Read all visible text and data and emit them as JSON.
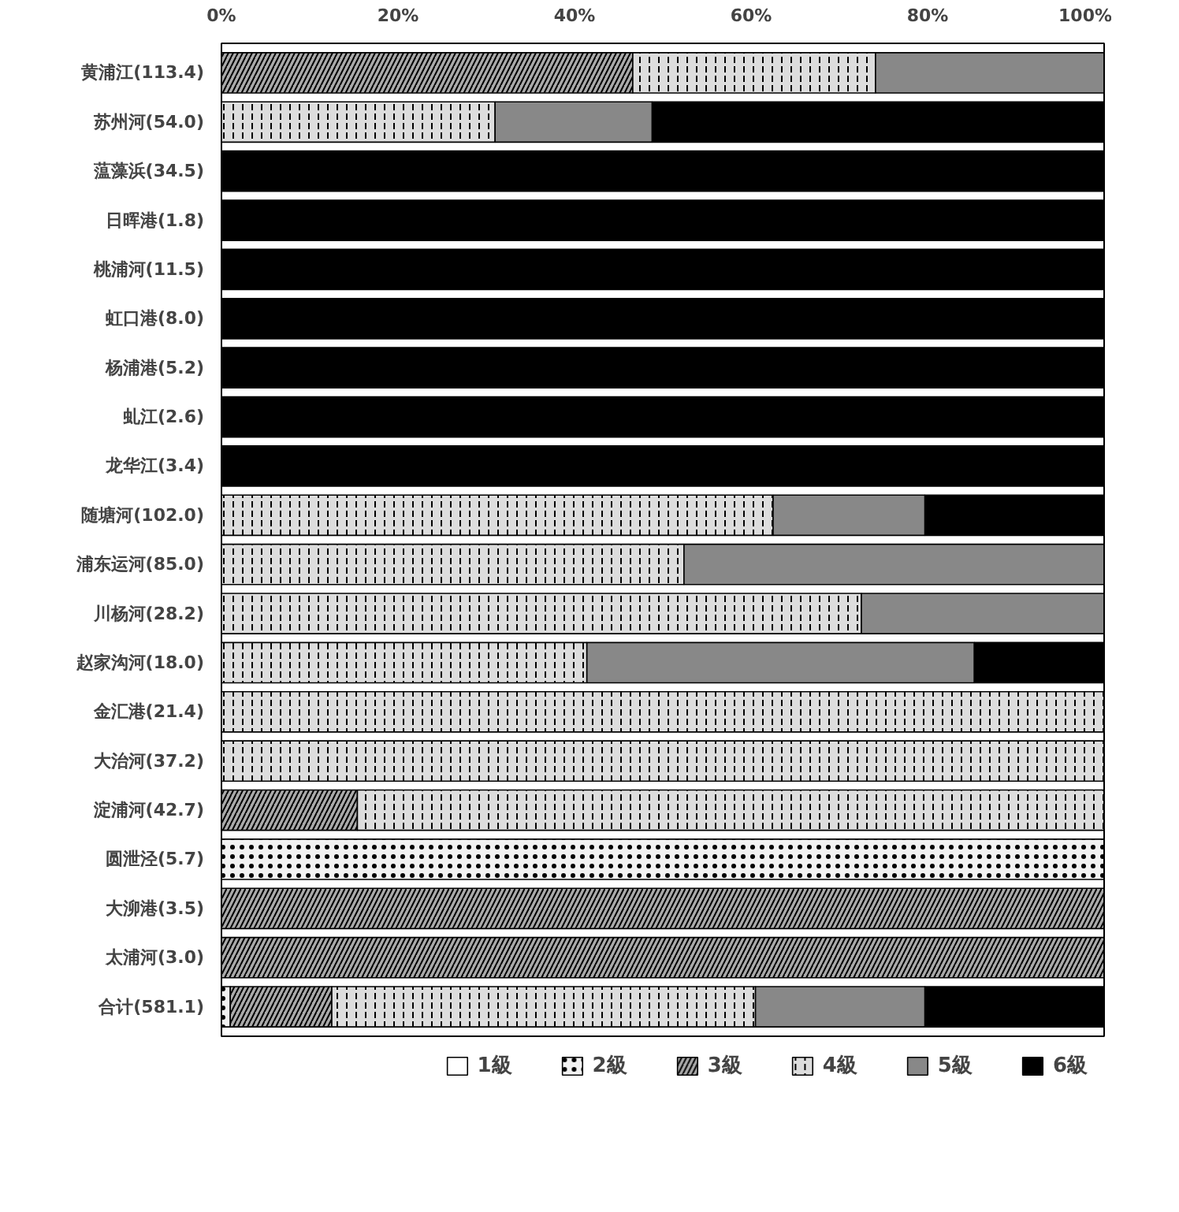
{
  "chart_data": {
    "type": "bar",
    "orientation": "horizontal",
    "stacked": true,
    "categories": [
      "黄浦江(113.4)",
      "苏州河(54.0)",
      "蕰藻浜(34.5)",
      "日晖港(1.8)",
      "桃浦河(11.5)",
      "虹口港(8.0)",
      "杨浦港(5.2)",
      "虬江(2.6)",
      "龙华江(3.4)",
      "随塘河(102.0)",
      "浦东运河(85.0)",
      "川杨河(28.2)",
      "赵家沟河(18.0)",
      "金汇港(21.4)",
      "大治河(37.2)",
      "淀浦河(42.7)",
      "圆泄泾(5.7)",
      "大泖港(3.5)",
      "太浦河(3.0)",
      "合计(581.1)"
    ],
    "series": [
      {
        "name": "1級",
        "color": "#ffffff",
        "values": [
          0,
          0,
          0,
          0,
          0,
          0,
          0,
          0,
          0,
          0,
          0,
          0,
          0,
          0,
          0,
          0,
          0,
          0,
          0,
          0
        ]
      },
      {
        "name": "2級",
        "color": "#f2f2f2",
        "values": [
          0,
          0,
          0,
          0,
          0,
          0,
          0,
          0,
          0,
          0,
          0,
          0,
          0,
          0,
          0,
          0,
          100,
          0,
          0,
          1.0
        ]
      },
      {
        "name": "3級",
        "color": "#aaaaaa",
        "values": [
          46.6,
          0,
          0,
          0,
          0,
          0,
          0,
          0,
          0,
          0,
          0,
          0,
          0,
          0,
          0,
          15.4,
          0,
          100,
          100,
          11.5
        ]
      },
      {
        "name": "4級",
        "color": "#dddddd",
        "values": [
          27.5,
          31.0,
          0,
          0,
          0,
          0,
          0,
          0,
          0,
          62.5,
          52.4,
          72.5,
          41.4,
          100,
          100,
          84.6,
          0,
          0,
          0,
          48.0
        ]
      },
      {
        "name": "5級",
        "color": "#888888",
        "values": [
          25.9,
          17.8,
          0,
          0,
          0,
          0,
          0,
          0,
          0,
          17.2,
          47.6,
          27.5,
          43.9,
          0,
          0,
          0,
          0,
          0,
          0,
          19.2
        ]
      },
      {
        "name": "6級",
        "color": "#000000",
        "values": [
          0,
          51.2,
          100,
          100,
          100,
          100,
          100,
          100,
          100,
          20.3,
          0,
          0,
          14.7,
          0,
          0,
          0,
          0,
          0,
          0,
          20.3
        ]
      }
    ],
    "xlim": [
      0,
      100
    ],
    "xticks": [
      {
        "value": 0,
        "label": "0%"
      },
      {
        "value": 20,
        "label": "20%"
      },
      {
        "value": 40,
        "label": "40%"
      },
      {
        "value": 60,
        "label": "60%"
      },
      {
        "value": 80,
        "label": "80%"
      },
      {
        "value": 100,
        "label": "100%"
      }
    ],
    "grid": false,
    "legend": "bottom"
  }
}
